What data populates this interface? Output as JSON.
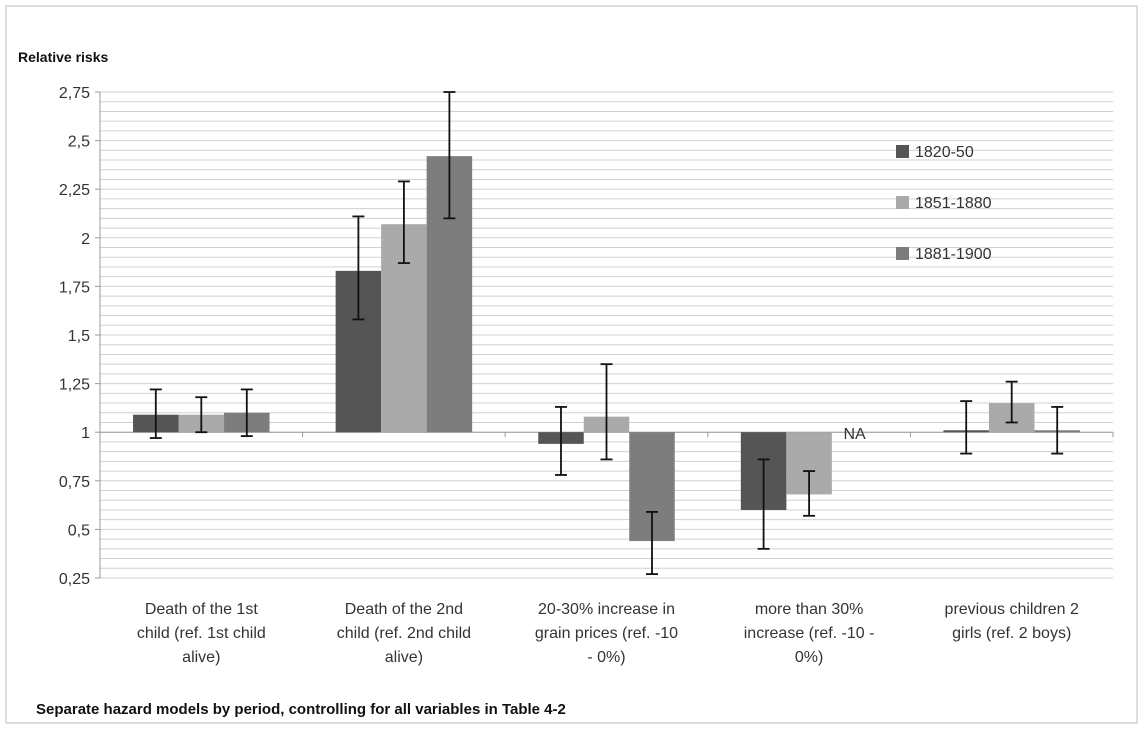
{
  "chart_data": {
    "type": "bar",
    "ylabel": "Relative risks",
    "caption": "Separate hazard models by period, controlling for all variables in Table 4-2",
    "baseline": 1,
    "ylim": [
      0.25,
      2.75
    ],
    "y_ticks": [
      "0,25",
      "0,5",
      "0,75",
      "1",
      "1,25",
      "1,5",
      "1,75",
      "2",
      "2,25",
      "2,5",
      "2,75"
    ],
    "y_tick_values": [
      0.25,
      0.5,
      0.75,
      1,
      1.25,
      1.5,
      1.75,
      2,
      2.25,
      2.5,
      2.75
    ],
    "categories": [
      [
        "Death of the 1st",
        "child (ref. 1st child",
        "alive)"
      ],
      [
        "Death of the 2nd",
        "child (ref. 2nd child",
        "alive)"
      ],
      [
        "20-30% increase in",
        "grain prices (ref. -10",
        "- 0%)"
      ],
      [
        "more than 30%",
        "increase (ref. -10 -",
        "0%)"
      ],
      [
        "previous children 2",
        "girls (ref. 2 boys)"
      ]
    ],
    "series": [
      {
        "name": "1820-50",
        "color": "#555555",
        "values": [
          1.09,
          1.83,
          0.94,
          0.6,
          1.01
        ],
        "err_low": [
          0.97,
          1.58,
          0.78,
          0.4,
          0.89
        ],
        "err_high": [
          1.22,
          2.11,
          1.13,
          0.86,
          1.16
        ]
      },
      {
        "name": "1851-1880",
        "color": "#aaaaaa",
        "values": [
          1.09,
          2.07,
          1.08,
          0.68,
          1.15
        ],
        "err_low": [
          1.0,
          1.87,
          0.86,
          0.57,
          1.05
        ],
        "err_high": [
          1.18,
          2.29,
          1.35,
          0.8,
          1.26
        ]
      },
      {
        "name": "1881-1900",
        "color": "#7d7d7d",
        "values": [
          1.1,
          2.42,
          0.44,
          null,
          1.01
        ],
        "err_low": [
          0.98,
          2.1,
          0.27,
          null,
          0.89
        ],
        "err_high": [
          1.22,
          2.75,
          0.59,
          null,
          1.13
        ]
      }
    ],
    "annotations": [
      {
        "text": "NA",
        "category_index": 3,
        "series_index": 2
      }
    ],
    "legend_position": "right",
    "grid": true
  }
}
